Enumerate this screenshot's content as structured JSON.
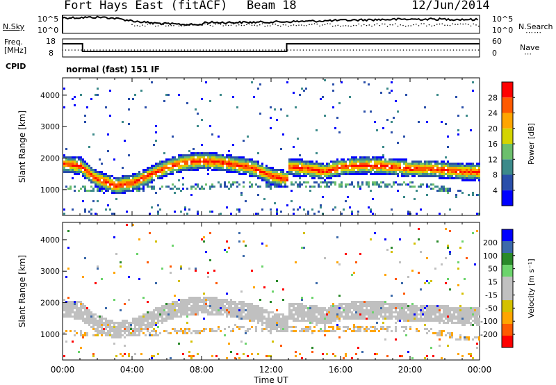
{
  "header": {
    "station": "Fort Hays East (fitACF)",
    "beam": "Beam 18",
    "date": "12/Jun/2014"
  },
  "noise_panel": {
    "left_label": "N.Sky",
    "right_label": "N.Search",
    "left_ticks": [
      "10^5",
      "10^0"
    ],
    "right_ticks": [
      "10^5",
      "10^0"
    ]
  },
  "freq_panel": {
    "left_label_line1": "Freq.",
    "left_label_line2": "[MHz]",
    "right_label": "Nave",
    "left_ticks": [
      "18",
      "8"
    ],
    "right_ticks": [
      "60",
      "0"
    ],
    "cpid_label": "CPID",
    "cpid_text": "normal (fast) 151 IF"
  },
  "colors": {
    "power_scale": [
      "#0000ff",
      "#2a4faa",
      "#3c8a8a",
      "#6cbf6c",
      "#d4d400",
      "#ffa500",
      "#ff5a00",
      "#ff0000"
    ],
    "velocity_scale": [
      "#ff0000",
      "#ff5a00",
      "#ffa500",
      "#d4c000",
      "#c0c0c0",
      "#c0c0c0",
      "#6cd46c",
      "#2a8a2a",
      "#3c6aaa",
      "#0000ff"
    ],
    "ground_scatter": "#c0c0c0"
  },
  "chart_data": [
    {
      "type": "heatmap",
      "panel": "power",
      "ylabel": "Slant Range [km]",
      "colorbar_label": "Power [dB]",
      "colorbar_ticks": [
        "28",
        "24",
        "20",
        "16",
        "12",
        "8",
        "4"
      ],
      "yticks": [
        "4000",
        "3000",
        "2000",
        "1000"
      ],
      "ylim": [
        180,
        4550
      ],
      "x_unit": "hours UT",
      "xlim": [
        0,
        24
      ],
      "main_band": {
        "x": [
          0,
          1,
          1.8,
          3,
          4,
          5,
          6,
          7,
          8,
          9,
          10,
          11,
          12,
          12.9,
          13,
          14,
          15,
          16,
          17,
          18,
          19,
          20,
          21,
          22,
          23,
          24
        ],
        "slant_range_km": [
          1850,
          1780,
          1400,
          1150,
          1250,
          1500,
          1750,
          1900,
          1950,
          1900,
          1820,
          1700,
          1450,
          1350,
          1750,
          1700,
          1600,
          1750,
          1800,
          1800,
          1750,
          1700,
          1700,
          1650,
          1600,
          1600
        ]
      },
      "ground_scatter_layer": {
        "x": [
          0,
          2,
          4,
          6,
          8,
          10,
          12,
          13,
          15,
          17,
          19,
          21,
          23,
          24
        ],
        "slant_range_km": [
          1100,
          1050,
          1050,
          1100,
          1150,
          1200,
          1150,
          1200,
          1200,
          1200,
          1200,
          1150,
          900,
          900
        ]
      }
    },
    {
      "type": "heatmap",
      "panel": "velocity",
      "ylabel": "Slant Range [km]",
      "xlabel": "Time UT",
      "colorbar_label": "Velocity [m s⁻¹]",
      "colorbar_ticks": [
        "200",
        "100",
        "50",
        "15",
        "-15",
        "-50",
        "-100",
        "-200"
      ],
      "yticks": [
        "4000",
        "3000",
        "2000",
        "1000"
      ],
      "ylim": [
        180,
        4550
      ],
      "xticks": [
        "00:00",
        "04:00",
        "08:00",
        "12:00",
        "16:00",
        "20:00",
        "00:00"
      ],
      "xlim": [
        0,
        24
      ]
    }
  ]
}
